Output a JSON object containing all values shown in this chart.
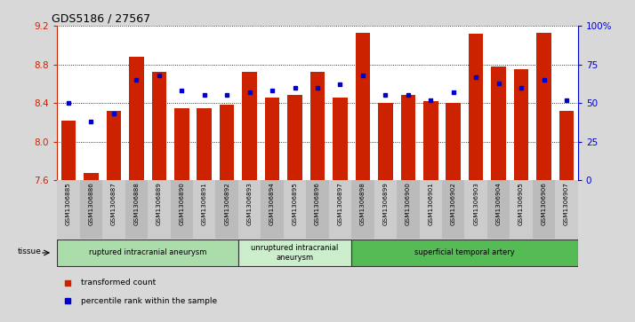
{
  "title": "GDS5186 / 27567",
  "samples": [
    "GSM1306885",
    "GSM1306886",
    "GSM1306887",
    "GSM1306888",
    "GSM1306889",
    "GSM1306890",
    "GSM1306891",
    "GSM1306892",
    "GSM1306893",
    "GSM1306894",
    "GSM1306895",
    "GSM1306896",
    "GSM1306897",
    "GSM1306898",
    "GSM1306899",
    "GSM1306900",
    "GSM1306901",
    "GSM1306902",
    "GSM1306903",
    "GSM1306904",
    "GSM1306905",
    "GSM1306906",
    "GSM1306907"
  ],
  "bar_values": [
    8.22,
    7.68,
    8.32,
    8.88,
    8.72,
    8.35,
    8.35,
    8.38,
    8.72,
    8.46,
    8.48,
    8.72,
    8.46,
    9.13,
    8.4,
    8.48,
    8.42,
    8.4,
    9.12,
    8.78,
    8.75,
    9.13,
    8.32
  ],
  "percentile_values": [
    50,
    38,
    43,
    65,
    68,
    58,
    55,
    55,
    57,
    58,
    60,
    60,
    62,
    68,
    55,
    55,
    52,
    57,
    67,
    63,
    60,
    65,
    52
  ],
  "ylim_left": [
    7.6,
    9.2
  ],
  "ylim_right": [
    0,
    100
  ],
  "yticks_left": [
    7.6,
    8.0,
    8.4,
    8.8,
    9.2
  ],
  "yticks_right": [
    0,
    25,
    50,
    75,
    100
  ],
  "ytick_labels_right": [
    "0",
    "25",
    "50",
    "75",
    "100%"
  ],
  "bar_color": "#cc2200",
  "dot_color": "#0000cc",
  "bg_color": "#d8d8d8",
  "plot_bg": "#ffffff",
  "groups": [
    {
      "label": "ruptured intracranial aneurysm",
      "start": 0,
      "end": 8,
      "color": "#aaddaa"
    },
    {
      "label": "unruptured intracranial\naneurysm",
      "start": 8,
      "end": 13,
      "color": "#cceecc"
    },
    {
      "label": "superficial temporal artery",
      "start": 13,
      "end": 23,
      "color": "#55bb55"
    }
  ],
  "tissue_label": "tissue",
  "legend_items": [
    {
      "label": "transformed count",
      "color": "#cc2200"
    },
    {
      "label": "percentile rank within the sample",
      "color": "#0000cc"
    }
  ]
}
